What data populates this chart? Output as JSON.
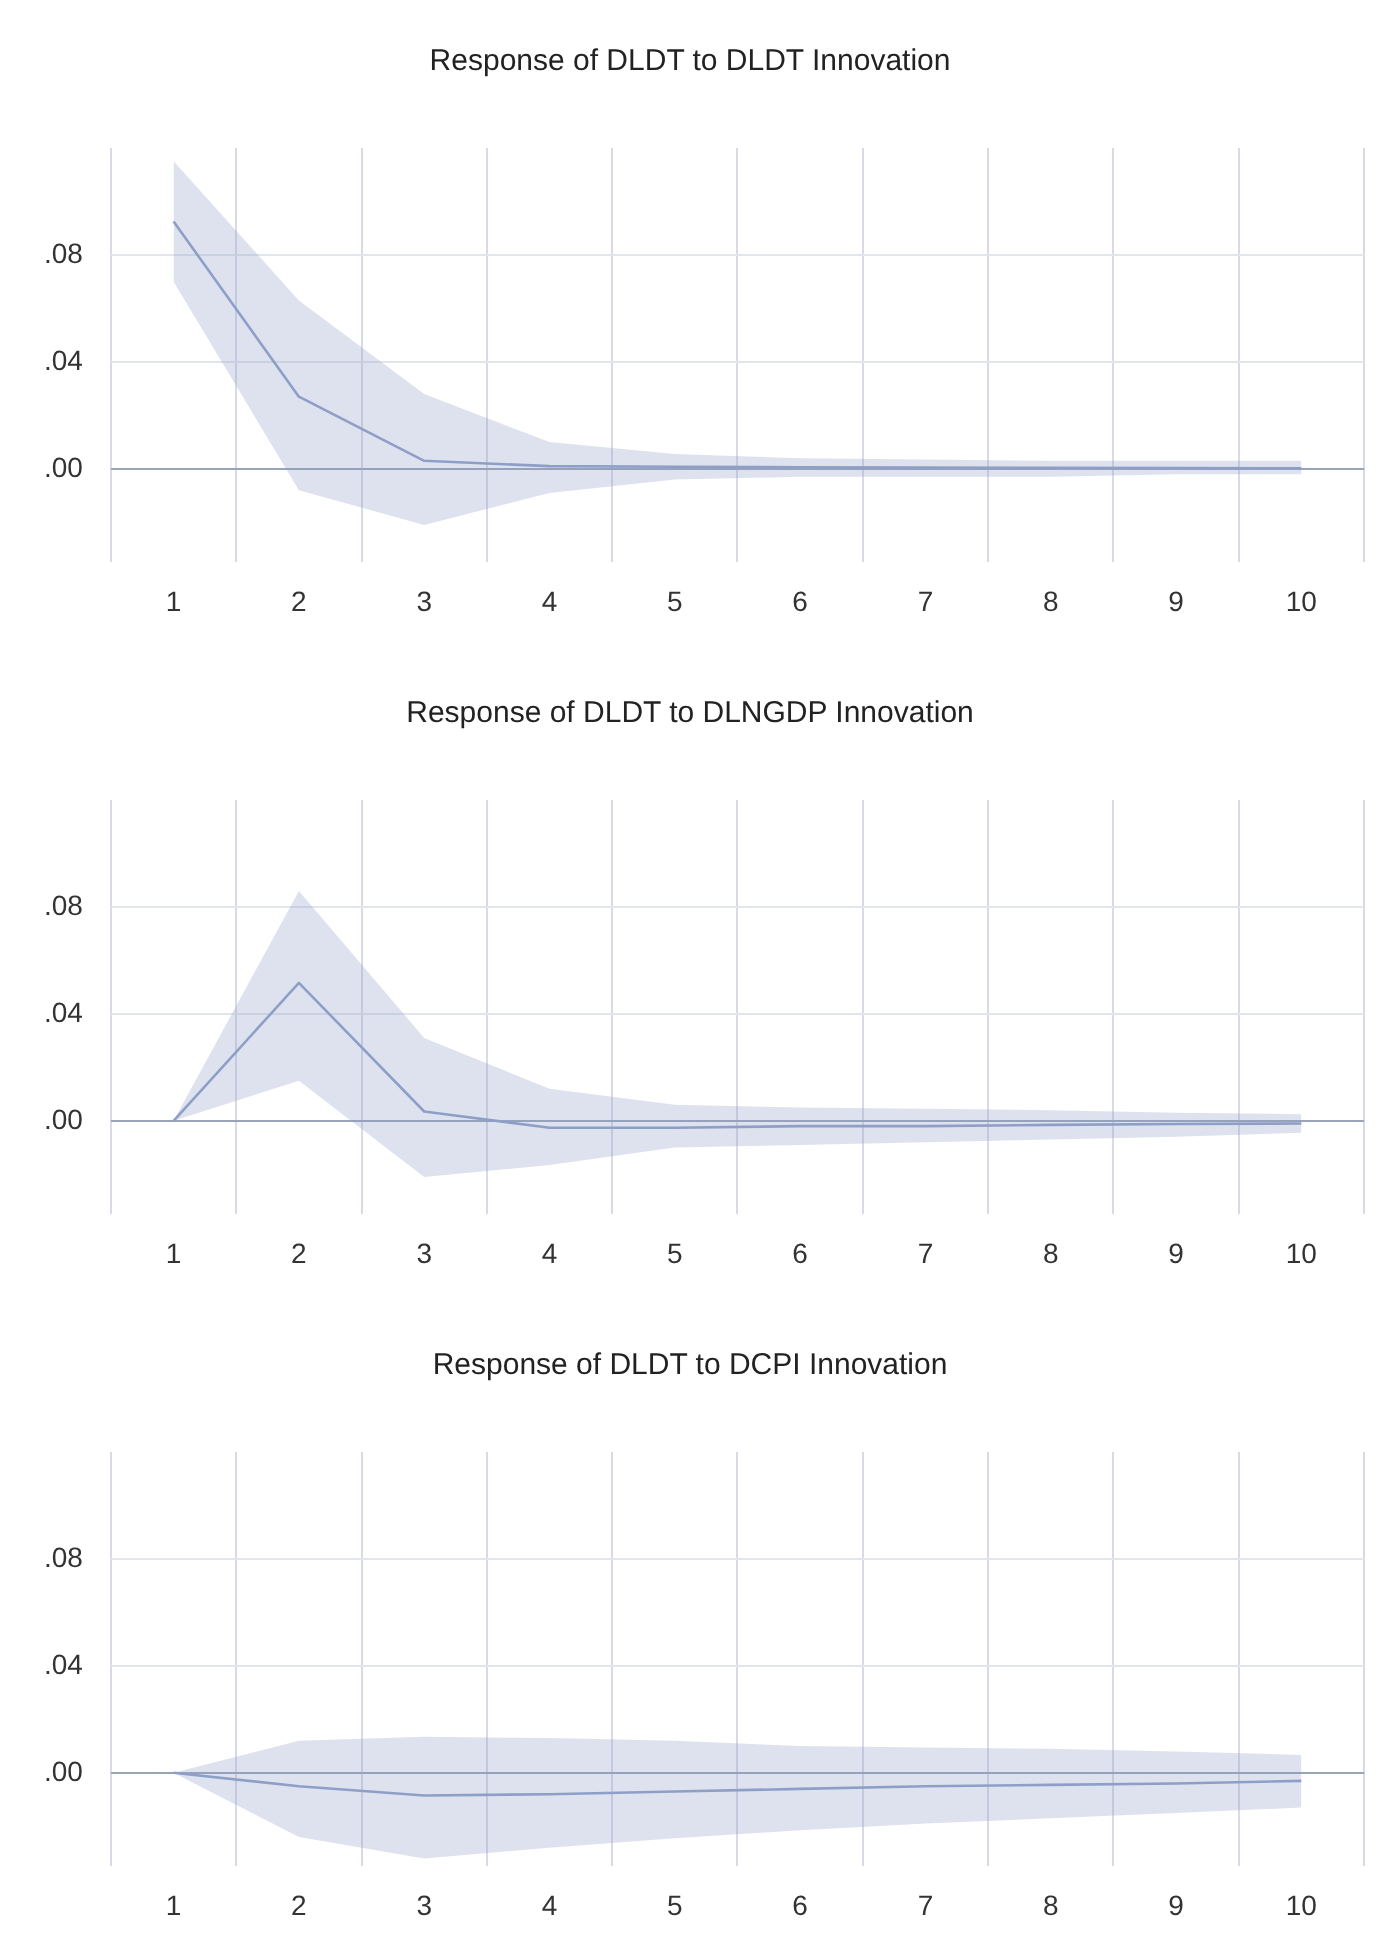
{
  "chart_data": [
    {
      "type": "line",
      "title": "Response of DLDT to DLDT Innovation",
      "categories": [
        "1",
        "2",
        "3",
        "4",
        "5",
        "6",
        "7",
        "8",
        "9",
        "10"
      ],
      "series": [
        {
          "color": "#8fa0c8",
          "values": [
            0.0925,
            0.027,
            0.003,
            0.001,
            0.0008,
            0.0006,
            0.0005,
            0.0004,
            0.0003,
            0.0002
          ],
          "lower": [
            0.07,
            -0.008,
            -0.021,
            -0.009,
            -0.004,
            -0.003,
            -0.003,
            -0.003,
            -0.002,
            -0.002
          ],
          "upper": [
            0.115,
            0.063,
            0.028,
            0.01,
            0.0055,
            0.004,
            0.0035,
            0.003,
            0.003,
            0.003
          ]
        }
      ],
      "ylim": [
        -0.035,
        0.12
      ],
      "yticks": [
        {
          "value": 0,
          "label": ".00"
        },
        {
          "value": 0.04,
          "label": ".04"
        },
        {
          "value": 0.08,
          "label": ".08"
        }
      ],
      "grid": true,
      "legend": false
    },
    {
      "type": "line",
      "title": "Response of DLDT to DLNGDP Innovation",
      "categories": [
        "1",
        "2",
        "3",
        "4",
        "5",
        "6",
        "7",
        "8",
        "9",
        "10"
      ],
      "series": [
        {
          "color": "#8fa0c8",
          "values": [
            0,
            0.0516,
            0.0035,
            -0.0026,
            -0.0026,
            -0.002,
            -0.002,
            -0.0015,
            -0.0012,
            -0.001
          ],
          "lower": [
            0,
            0.015,
            -0.021,
            -0.0165,
            -0.01,
            -0.009,
            -0.008,
            -0.007,
            -0.006,
            -0.0045
          ],
          "upper": [
            0,
            0.086,
            0.031,
            0.012,
            0.006,
            0.005,
            0.0045,
            0.004,
            0.003,
            0.0025
          ]
        }
      ],
      "ylim": [
        -0.035,
        0.12
      ],
      "yticks": [
        {
          "value": 0,
          "label": ".00"
        },
        {
          "value": 0.04,
          "label": ".04"
        },
        {
          "value": 0.08,
          "label": ".08"
        }
      ],
      "grid": true,
      "legend": false
    },
    {
      "type": "line",
      "title": "Response of DLDT to DCPI Innovation",
      "categories": [
        "1",
        "2",
        "3",
        "4",
        "5",
        "6",
        "7",
        "8",
        "9",
        "10"
      ],
      "series": [
        {
          "color": "#8fa0c8",
          "values": [
            0,
            -0.005,
            -0.0085,
            -0.008,
            -0.007,
            -0.006,
            -0.005,
            -0.0045,
            -0.004,
            -0.003
          ],
          "lower": [
            0,
            -0.024,
            -0.032,
            -0.028,
            -0.0245,
            -0.0215,
            -0.019,
            -0.017,
            -0.015,
            -0.013
          ],
          "upper": [
            0,
            0.012,
            0.0135,
            0.013,
            0.012,
            0.01,
            0.0095,
            0.009,
            0.008,
            0.0067
          ]
        }
      ],
      "ylim": [
        -0.035,
        0.12
      ],
      "yticks": [
        {
          "value": 0,
          "label": ".00"
        },
        {
          "value": 0.04,
          "label": ".04"
        },
        {
          "value": 0.08,
          "label": ".08"
        }
      ],
      "grid": true,
      "legend": false
    }
  ]
}
